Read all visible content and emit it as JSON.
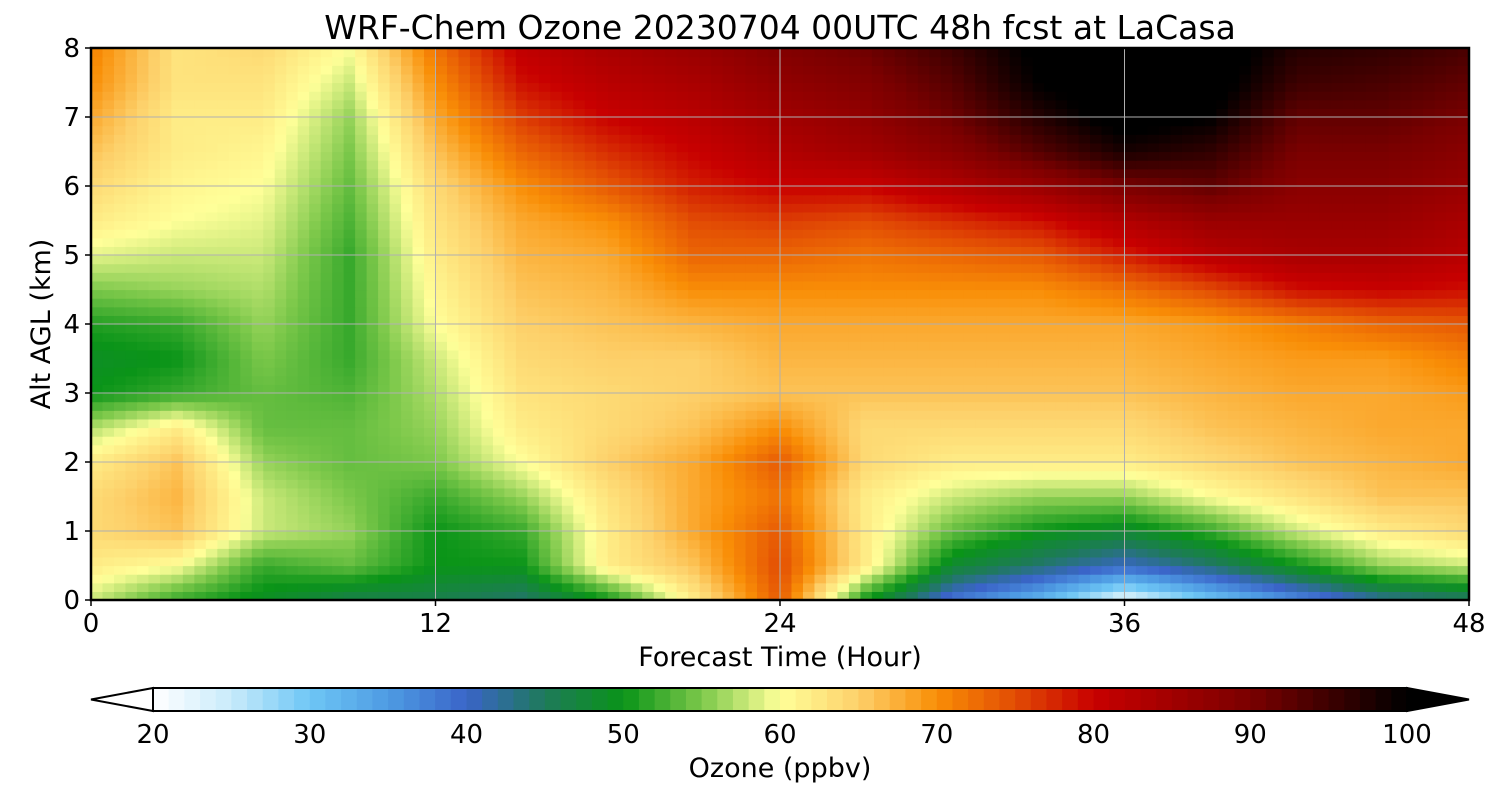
{
  "chart_data": {
    "type": "heatmap",
    "title": "WRF-Chem Ozone  20230704 00UTC 48h fcst at LaCasa",
    "xlabel": "Forecast Time (Hour)",
    "ylabel": "Alt AGL (km)",
    "xlim": [
      0,
      48
    ],
    "ylim": [
      0,
      8
    ],
    "x_ticks": [
      "0",
      "12",
      "24",
      "36",
      "48"
    ],
    "y_ticks": [
      "0",
      "1",
      "2",
      "3",
      "4",
      "5",
      "6",
      "7",
      "8"
    ],
    "grid": true,
    "x": [
      0,
      3,
      6,
      9,
      12,
      15,
      18,
      21,
      24,
      27,
      30,
      33,
      36,
      39,
      42,
      45,
      48
    ],
    "y": [
      0,
      0.5,
      1,
      1.5,
      2,
      2.5,
      3,
      3.5,
      4,
      4.5,
      5,
      5.5,
      6,
      6.5,
      7,
      7.5,
      8
    ],
    "z_units": "ppbv",
    "z": [
      [
        58,
        52,
        49,
        46,
        46,
        44,
        50,
        62,
        74,
        50,
        38,
        32,
        22,
        30,
        36,
        42,
        44
      ],
      [
        62,
        60,
        52,
        54,
        50,
        50,
        62,
        66,
        75,
        62,
        48,
        44,
        40,
        44,
        50,
        56,
        58
      ],
      [
        64,
        66,
        58,
        56,
        50,
        52,
        62,
        68,
        74,
        62,
        54,
        50,
        48,
        52,
        58,
        62,
        64
      ],
      [
        64,
        67,
        58,
        55,
        52,
        56,
        63,
        68,
        72,
        62,
        58,
        56,
        56,
        60,
        63,
        66,
        66
      ],
      [
        62,
        66,
        56,
        54,
        55,
        60,
        65,
        68,
        74,
        64,
        62,
        62,
        62,
        64,
        66,
        67,
        68
      ],
      [
        57,
        62,
        54,
        54,
        56,
        62,
        64,
        66,
        70,
        64,
        64,
        64,
        64,
        66,
        67,
        68,
        68
      ],
      [
        50,
        52,
        54,
        53,
        57,
        63,
        64,
        65,
        66,
        66,
        66,
        66,
        66,
        67,
        68,
        68,
        69
      ],
      [
        49,
        50,
        55,
        52,
        58,
        64,
        65,
        65,
        67,
        67,
        67,
        67,
        67,
        68,
        69,
        69,
        71
      ],
      [
        51,
        52,
        56,
        52,
        60,
        65,
        66,
        67,
        68,
        68,
        68,
        68,
        68,
        69,
        71,
        73,
        74
      ],
      [
        55,
        56,
        57,
        52,
        61,
        66,
        67,
        70,
        70,
        70,
        70,
        70,
        72,
        75,
        79,
        80,
        79
      ],
      [
        59,
        58,
        58,
        52,
        62,
        67,
        68,
        73,
        73,
        72,
        73,
        74,
        78,
        82,
        84,
        84,
        82
      ],
      [
        62,
        60,
        59,
        53,
        63,
        68,
        70,
        75,
        76,
        75,
        77,
        79,
        83,
        86,
        86,
        86,
        84
      ],
      [
        64,
        61,
        60,
        54,
        64,
        70,
        74,
        78,
        80,
        80,
        83,
        86,
        90,
        92,
        88,
        88,
        86
      ],
      [
        66,
        62,
        61,
        55,
        66,
        73,
        77,
        80,
        83,
        85,
        88,
        93,
        98,
        96,
        90,
        90,
        88
      ],
      [
        68,
        62,
        62,
        56,
        68,
        76,
        80,
        82,
        85,
        87,
        91,
        97,
        102,
        100,
        92,
        92,
        90
      ],
      [
        70,
        63,
        63,
        58,
        70,
        79,
        82,
        84,
        87,
        89,
        93,
        100,
        103,
        102,
        95,
        94,
        92
      ],
      [
        71,
        63,
        64,
        60,
        72,
        81,
        84,
        86,
        89,
        91,
        95,
        101,
        104,
        103,
        97,
        96,
        94
      ]
    ],
    "colorbar": {
      "label": "Ozone  (ppbv)",
      "min": 20,
      "max": 100,
      "ticks": [
        "20",
        "30",
        "40",
        "50",
        "60",
        "70",
        "80",
        "90",
        "100"
      ],
      "extend": "both",
      "stops": [
        {
          "v": 20,
          "c": "#ffffff"
        },
        {
          "v": 25,
          "c": "#c8ebfb"
        },
        {
          "v": 30,
          "c": "#6ec6f5"
        },
        {
          "v": 35,
          "c": "#4e9be3"
        },
        {
          "v": 40,
          "c": "#3a64c8"
        },
        {
          "v": 45,
          "c": "#1e7a5a"
        },
        {
          "v": 50,
          "c": "#0a9418"
        },
        {
          "v": 55,
          "c": "#7cc84a"
        },
        {
          "v": 60,
          "c": "#ffff99"
        },
        {
          "v": 65,
          "c": "#fdd06a"
        },
        {
          "v": 70,
          "c": "#f98e06"
        },
        {
          "v": 75,
          "c": "#e24c04"
        },
        {
          "v": 80,
          "c": "#c80000"
        },
        {
          "v": 90,
          "c": "#7a0000"
        },
        {
          "v": 100,
          "c": "#000000"
        }
      ]
    }
  }
}
